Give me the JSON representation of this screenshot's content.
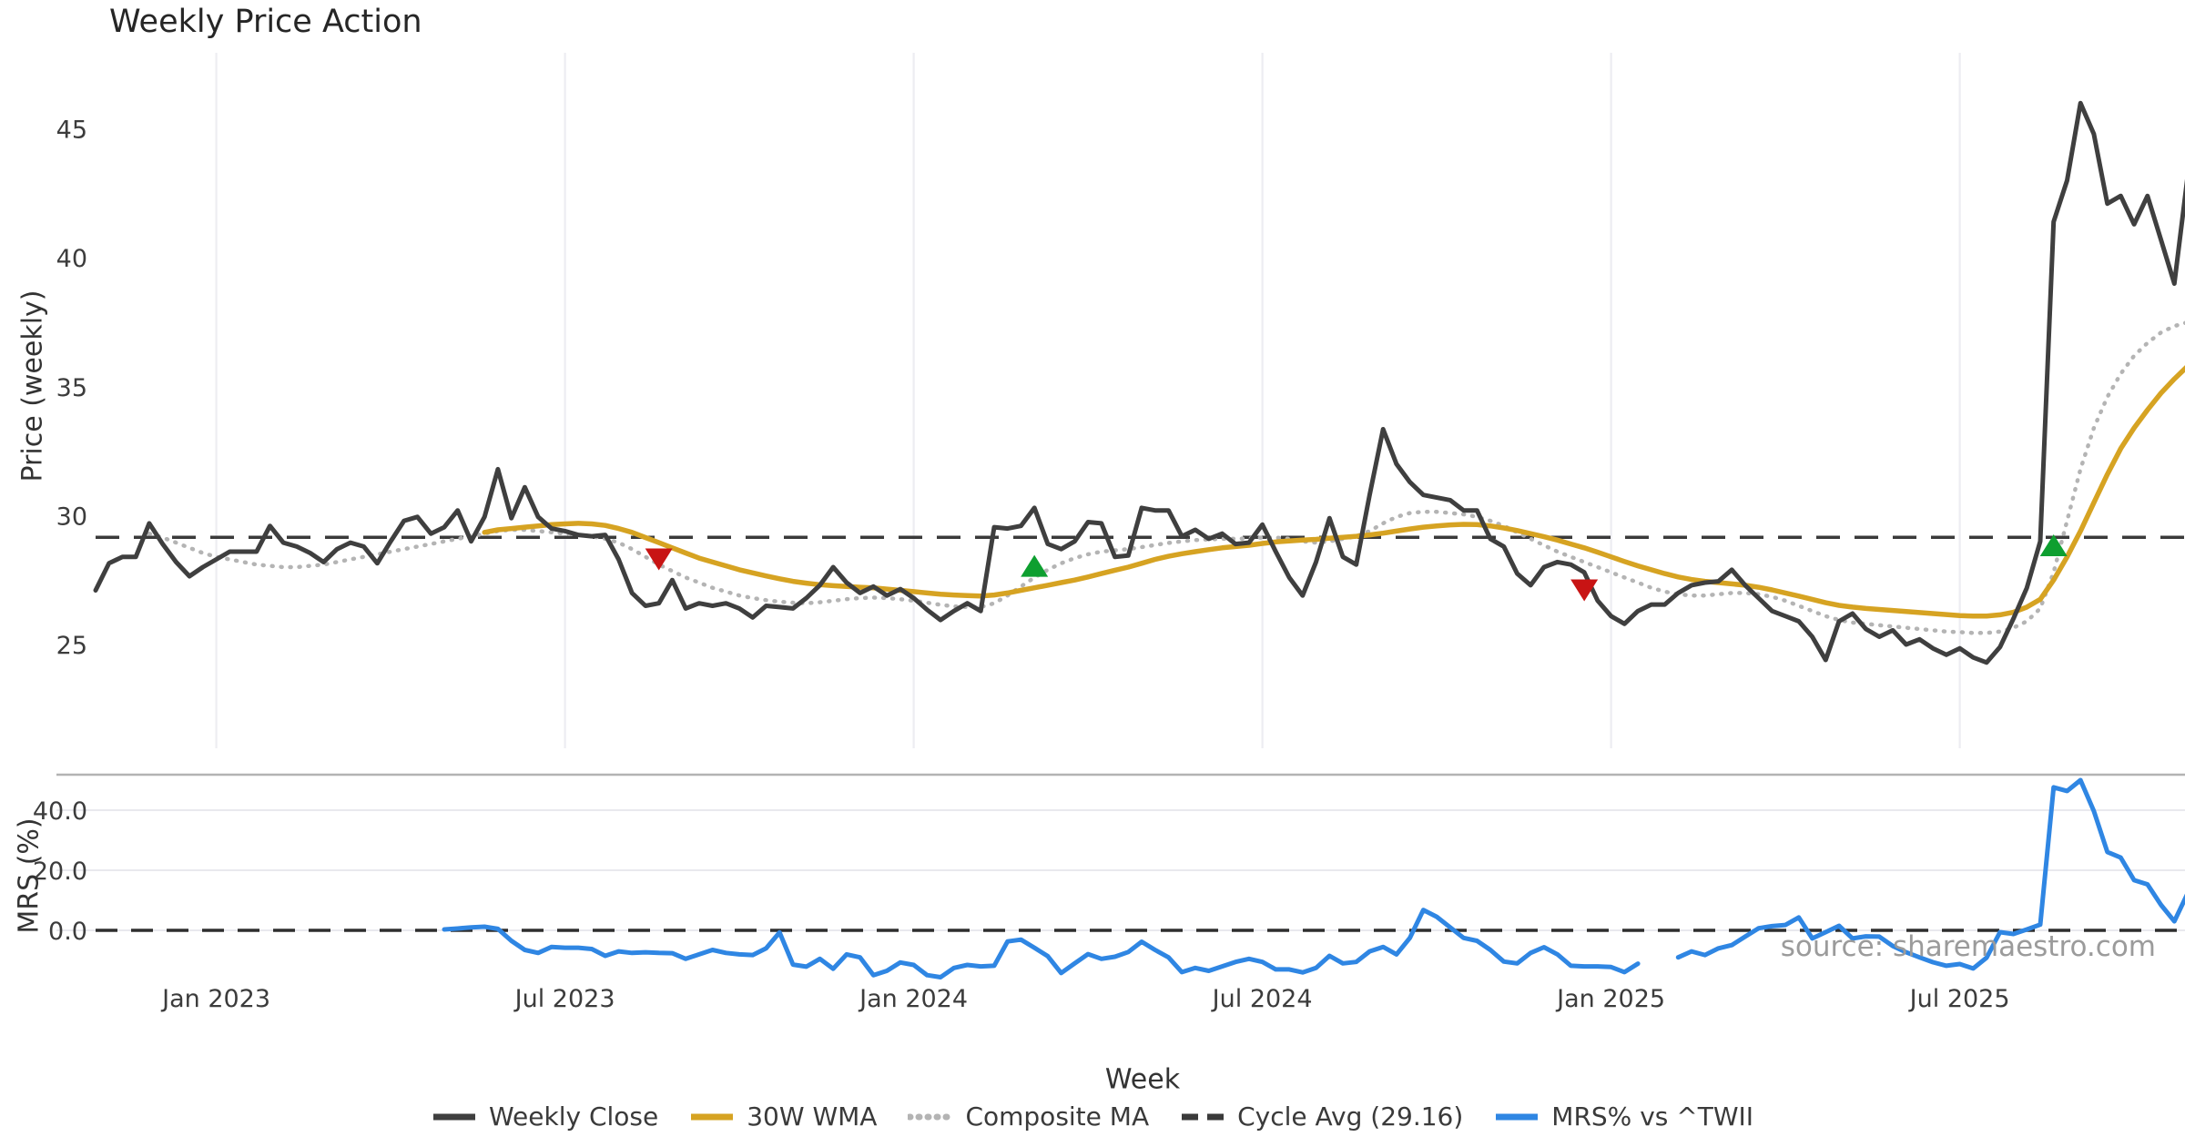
{
  "page": {
    "watermark": "source: sharemaestro.com"
  },
  "chart_data": {
    "type": "line",
    "title": "Weekly Price Action",
    "xlabel": "Week",
    "ylabel_price": "Price (weekly)",
    "ylabel_mrs": "MRS (%)",
    "grid": "vertical-in-price-panel, horizontal-in-mrs-panel",
    "legend_position": "bottom-center",
    "price_ylim": [
      21.0,
      47.9
    ],
    "mrs_ylim": [
      -16,
      52
    ],
    "cycle_avg": 29.16,
    "x_ticks": [
      {
        "label": "Jan 2023",
        "week": 9
      },
      {
        "label": "Jul 2023",
        "week": 35
      },
      {
        "label": "Jan 2024",
        "week": 61
      },
      {
        "label": "Jul 2024",
        "week": 87
      },
      {
        "label": "Jan 2025",
        "week": 113
      },
      {
        "label": "Jul 2025",
        "week": 139
      }
    ],
    "price_ticks": [
      25,
      30,
      35,
      40,
      45
    ],
    "mrs_ticks": [
      {
        "label": "0.0",
        "value": 0
      },
      {
        "label": "20.0",
        "value": 20
      },
      {
        "label": "40.0",
        "value": 40
      }
    ],
    "series": [
      {
        "name": "Weekly Close",
        "panel": "price",
        "color": "#3f3f3f",
        "style": "solid",
        "width": 5,
        "values": [
          27.1,
          28.15,
          28.4,
          28.4,
          29.7,
          28.9,
          28.2,
          27.65,
          28.0,
          28.3,
          28.6,
          28.6,
          28.6,
          29.6,
          28.95,
          28.8,
          28.55,
          28.2,
          28.7,
          28.95,
          28.8,
          28.15,
          29.0,
          29.8,
          29.95,
          29.3,
          29.55,
          30.2,
          29.0,
          29.95,
          31.8,
          29.9,
          31.1,
          29.95,
          29.5,
          29.4,
          29.25,
          29.2,
          29.25,
          28.3,
          27.0,
          26.5,
          26.6,
          27.5,
          26.4,
          26.6,
          26.5,
          26.6,
          26.4,
          26.05,
          26.5,
          26.45,
          26.4,
          26.8,
          27.3,
          28.0,
          27.4,
          27.0,
          27.25,
          26.9,
          27.15,
          26.8,
          26.35,
          25.95,
          26.3,
          26.6,
          26.3,
          29.55,
          29.5,
          29.6,
          30.3,
          28.9,
          28.7,
          29.0,
          29.75,
          29.7,
          28.4,
          28.45,
          30.3,
          30.2,
          30.2,
          29.2,
          29.45,
          29.1,
          29.3,
          28.9,
          28.95,
          29.65,
          28.6,
          27.6,
          26.9,
          28.2,
          29.9,
          28.4,
          28.1,
          30.8,
          33.35,
          32.0,
          31.3,
          30.8,
          30.7,
          30.6,
          30.2,
          30.2,
          29.1,
          28.8,
          27.75,
          27.3,
          28.0,
          28.2,
          28.1,
          27.8,
          26.7,
          26.1,
          25.8,
          26.3,
          26.55,
          26.55,
          27.0,
          27.3,
          27.4,
          27.45,
          27.9,
          27.3,
          26.8,
          26.3,
          26.1,
          25.9,
          25.3,
          24.4,
          25.9,
          26.2,
          25.6,
          25.3,
          25.55,
          25.0,
          25.2,
          24.85,
          24.6,
          24.85,
          24.5,
          24.3,
          24.9,
          26.0,
          27.2,
          29.0,
          41.4,
          43.0,
          46.0,
          44.8,
          42.1,
          42.4,
          41.3,
          42.4,
          40.7,
          39.0,
          43.2
        ]
      },
      {
        "name": "30W WMA",
        "panel": "price",
        "color": "#d6a322",
        "style": "solid",
        "width": 5.5,
        "values": [
          null,
          null,
          null,
          null,
          null,
          null,
          null,
          null,
          null,
          null,
          null,
          null,
          null,
          null,
          null,
          null,
          null,
          null,
          null,
          null,
          null,
          null,
          null,
          null,
          null,
          null,
          null,
          null,
          null,
          29.35,
          29.45,
          29.5,
          29.55,
          29.6,
          29.65,
          29.68,
          29.7,
          29.68,
          29.62,
          29.5,
          29.35,
          29.15,
          28.95,
          28.75,
          28.55,
          28.35,
          28.2,
          28.05,
          27.9,
          27.78,
          27.66,
          27.55,
          27.45,
          27.38,
          27.32,
          27.28,
          27.25,
          27.22,
          27.2,
          27.15,
          27.1,
          27.05,
          27.0,
          26.95,
          26.92,
          26.9,
          26.88,
          26.92,
          27.0,
          27.1,
          27.2,
          27.3,
          27.4,
          27.5,
          27.62,
          27.75,
          27.88,
          28.0,
          28.15,
          28.3,
          28.42,
          28.52,
          28.6,
          28.68,
          28.75,
          28.8,
          28.85,
          28.92,
          28.98,
          29.02,
          29.05,
          29.08,
          29.12,
          29.16,
          29.2,
          29.25,
          29.32,
          29.4,
          29.48,
          29.55,
          29.6,
          29.64,
          29.66,
          29.65,
          29.6,
          29.52,
          29.42,
          29.3,
          29.18,
          29.05,
          28.9,
          28.75,
          28.58,
          28.4,
          28.22,
          28.05,
          27.9,
          27.75,
          27.62,
          27.52,
          27.45,
          27.4,
          27.35,
          27.3,
          27.22,
          27.12,
          27.0,
          26.88,
          26.75,
          26.62,
          26.52,
          26.45,
          26.4,
          26.36,
          26.32,
          26.28,
          26.24,
          26.2,
          26.16,
          26.12,
          26.1,
          26.1,
          26.15,
          26.25,
          26.45,
          26.75,
          27.5,
          28.4,
          29.4,
          30.5,
          31.6,
          32.6,
          33.4,
          34.1,
          34.75,
          35.3,
          35.8
        ]
      },
      {
        "name": "Composite MA",
        "panel": "price",
        "color": "#b4b4b4",
        "style": "dotted",
        "width": 4.5,
        "values": [
          null,
          null,
          null,
          null,
          29.3,
          29.15,
          28.95,
          28.75,
          28.55,
          28.4,
          28.3,
          28.2,
          28.1,
          28.05,
          28.0,
          28.0,
          28.05,
          28.1,
          28.2,
          28.3,
          28.4,
          28.5,
          28.6,
          28.7,
          28.8,
          28.9,
          29.0,
          29.1,
          29.2,
          29.3,
          29.4,
          29.45,
          29.45,
          29.4,
          29.35,
          29.3,
          29.25,
          29.2,
          29.1,
          28.95,
          28.7,
          28.4,
          28.1,
          27.85,
          27.6,
          27.4,
          27.2,
          27.05,
          26.9,
          26.8,
          26.72,
          26.66,
          26.62,
          26.6,
          26.64,
          26.7,
          26.76,
          26.8,
          26.82,
          26.8,
          26.76,
          26.7,
          26.62,
          26.54,
          26.48,
          26.45,
          26.45,
          26.6,
          26.9,
          27.25,
          27.6,
          27.9,
          28.15,
          28.35,
          28.5,
          28.6,
          28.65,
          28.7,
          28.78,
          28.86,
          28.94,
          29.0,
          29.05,
          29.08,
          29.1,
          29.1,
          29.12,
          29.15,
          29.15,
          29.1,
          29.0,
          28.95,
          29.0,
          29.1,
          29.2,
          29.4,
          29.7,
          29.95,
          30.1,
          30.15,
          30.15,
          30.1,
          30.05,
          29.95,
          29.8,
          29.6,
          29.35,
          29.1,
          28.85,
          28.6,
          28.4,
          28.2,
          28.0,
          27.8,
          27.6,
          27.4,
          27.2,
          27.05,
          26.95,
          26.9,
          26.9,
          26.95,
          27.0,
          27.0,
          26.95,
          26.85,
          26.7,
          26.5,
          26.3,
          26.1,
          25.95,
          25.85,
          25.8,
          25.75,
          25.7,
          25.65,
          25.6,
          25.55,
          25.5,
          25.48,
          25.45,
          25.45,
          25.5,
          25.65,
          25.9,
          26.4,
          27.8,
          29.8,
          31.8,
          33.4,
          34.6,
          35.5,
          36.2,
          36.7,
          37.1,
          37.35,
          37.5
        ]
      },
      {
        "name": "Cycle Avg (29.16)",
        "panel": "price",
        "color": "#3a3a3a",
        "style": "dashed",
        "width": 3.5,
        "constant": 29.16
      },
      {
        "name": "MRS% vs ^TWII",
        "panel": "mrs",
        "color": "#2f86e3",
        "style": "solid",
        "width": 5,
        "values": [
          null,
          null,
          null,
          null,
          null,
          null,
          null,
          null,
          null,
          null,
          null,
          null,
          null,
          null,
          null,
          null,
          null,
          null,
          null,
          null,
          null,
          null,
          null,
          null,
          null,
          null,
          0.3,
          0.6,
          1.0,
          1.2,
          0.5,
          -3.5,
          -6.5,
          -7.5,
          -5.5,
          -5.8,
          -5.8,
          -6.2,
          -8.5,
          -7.0,
          -7.5,
          -7.3,
          -7.5,
          -7.6,
          -9.5,
          -8.0,
          -6.5,
          -7.5,
          -8.0,
          -8.2,
          -6.0,
          -0.7,
          -11.4,
          -12.1,
          -9.5,
          -12.8,
          -8.0,
          -9.0,
          -14.9,
          -13.5,
          -10.7,
          -11.5,
          -14.9,
          -15.6,
          -12.5,
          -11.5,
          -12.0,
          -11.8,
          -3.7,
          -3.1,
          -5.8,
          -8.6,
          -14.2,
          -11.0,
          -7.9,
          -9.5,
          -8.8,
          -7.2,
          -3.8,
          -6.5,
          -9.0,
          -13.9,
          -12.5,
          -13.5,
          -12.0,
          -10.5,
          -9.5,
          -10.5,
          -13.0,
          -13.0,
          -14.0,
          -12.5,
          -8.5,
          -11.0,
          -10.5,
          -7.0,
          -5.5,
          -8.0,
          -2.5,
          6.8,
          4.5,
          1.0,
          -2.5,
          -3.5,
          -6.5,
          -10.4,
          -11.0,
          -7.5,
          -5.6,
          -8.0,
          -11.8,
          -12.0,
          -12.0,
          -12.2,
          -13.9,
          -11.1,
          null,
          null,
          -9.0,
          -7.0,
          -8.2,
          -6.0,
          -4.9,
          -2.1,
          0.7,
          1.4,
          1.8,
          4.3,
          -2.7,
          -0.6,
          1.5,
          -2.7,
          -2.0,
          -2.1,
          -5.2,
          -7.3,
          -9.0,
          -10.6,
          -11.8,
          -11.2,
          -12.7,
          -9.1,
          -0.6,
          -1.2,
          0.3,
          1.9,
          47.6,
          46.4,
          50.0,
          39.7,
          26.1,
          24.2,
          16.7,
          15.3,
          8.5,
          3.0,
          12.4
        ]
      }
    ],
    "markers": [
      {
        "type": "sell",
        "symbol": "triangle-down",
        "color": "#c81414",
        "week": 42,
        "price": 28.3
      },
      {
        "type": "buy",
        "symbol": "triangle-up",
        "color": "#0e9f30",
        "week": 70,
        "price": 28.05
      },
      {
        "type": "sell",
        "symbol": "triangle-down",
        "color": "#c81414",
        "week": 111,
        "price": 27.1
      },
      {
        "type": "buy",
        "symbol": "triangle-up",
        "color": "#0e9f30",
        "week": 146,
        "price": 28.85
      }
    ]
  },
  "legend": {
    "items": [
      {
        "label": "Weekly Close",
        "color": "#3f3f3f",
        "style": "solid"
      },
      {
        "label": "30W WMA",
        "color": "#d6a322",
        "style": "solid"
      },
      {
        "label": "Composite MA",
        "color": "#b4b4b4",
        "style": "dotted"
      },
      {
        "label": "Cycle Avg (29.16)",
        "color": "#3a3a3a",
        "style": "dashed"
      },
      {
        "label": "MRS% vs ^TWII",
        "color": "#2f86e3",
        "style": "solid"
      }
    ]
  }
}
